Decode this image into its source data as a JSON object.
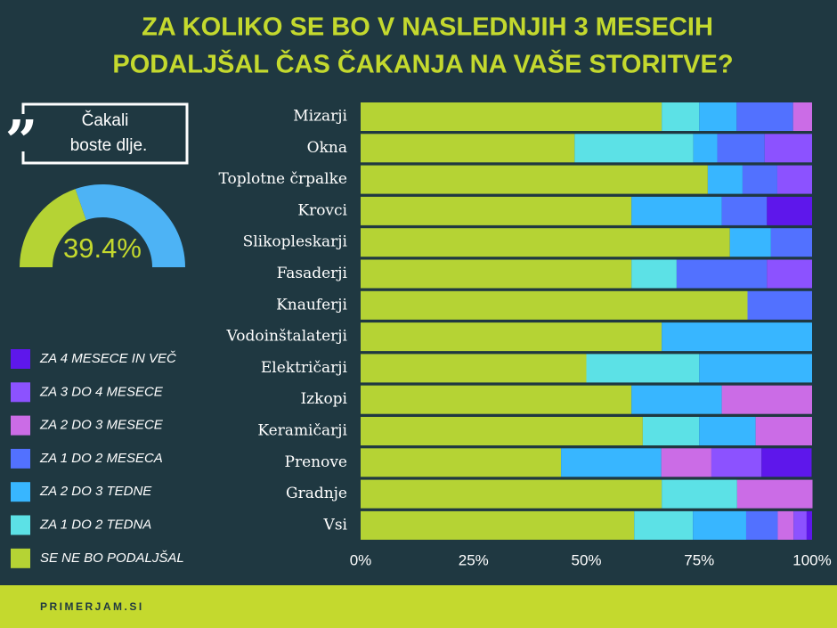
{
  "chart_data": [
    {
      "type": "bar",
      "orientation": "horizontal",
      "stacked": true,
      "title": [
        "ZA KOLIKO SE BO V NASLEDNJIH 3 MESECIH",
        "PODALJŠAL ČAS ČAKANJA NA VAŠE STORITVE?"
      ],
      "categories": [
        "Mizarji",
        "Okna",
        "Toplotne črpalke",
        "Krovci",
        "Slikopleskarji",
        "Fasaderji",
        "Knauferji",
        "Vodoinštalaterji",
        "Električarji",
        "Izkopi",
        "Keramičarji",
        "Prenove",
        "Gradnje",
        "Vsi"
      ],
      "series": [
        {
          "name": "SE NE BO PODALJŠAL",
          "color": "#b5d334",
          "values": [
            66.7,
            47.4,
            76.9,
            60,
            81.8,
            60,
            85.7,
            66.7,
            50,
            60,
            62.5,
            44.4,
            66.7,
            60.6
          ]
        },
        {
          "name": "ZA 1 DO 2 TEDNA",
          "color": "#5ce1e6",
          "values": [
            8.3,
            26.3,
            0,
            0,
            0,
            10,
            0,
            0,
            25,
            0,
            12.5,
            0,
            16.7,
            13
          ]
        },
        {
          "name": "ZA 2 DO 3 TEDNE",
          "color": "#38b6ff",
          "values": [
            8.3,
            5.3,
            7.7,
            20,
            9.1,
            0,
            0,
            33.3,
            25,
            20,
            12.5,
            22.2,
            0,
            11.8
          ]
        },
        {
          "name": "ZA 1 DO 2 MESECA",
          "color": "#5271ff",
          "values": [
            12.5,
            10.5,
            7.7,
            10,
            9.1,
            20,
            14.3,
            0,
            0,
            0,
            0,
            0,
            0,
            7
          ]
        },
        {
          "name": "ZA 2 DO 3 MESECE",
          "color": "#cb6ce6",
          "values": [
            4.2,
            0,
            0,
            0,
            0,
            0,
            0,
            0,
            0,
            20,
            12.5,
            11.1,
            16.7,
            3.5
          ]
        },
        {
          "name": "ZA 3 DO 4 MESECE",
          "color": "#8c52ff",
          "values": [
            0,
            10.5,
            7.7,
            0,
            0,
            10,
            0,
            0,
            0,
            0,
            0,
            11.1,
            0,
            2.9
          ]
        },
        {
          "name": "ZA 4 MESECE IN VEČ",
          "color": "#5e17eb",
          "values": [
            0,
            0,
            0,
            10,
            0,
            0,
            0,
            0,
            0,
            0,
            0,
            11.1,
            0,
            1.2
          ]
        }
      ],
      "xlim": [
        0,
        100
      ],
      "xticks": [
        {
          "value": 0,
          "label": "0%"
        },
        {
          "value": 25,
          "label": "25%"
        },
        {
          "value": 50,
          "label": "50%"
        },
        {
          "value": 75,
          "label": "75%"
        },
        {
          "value": 100,
          "label": "100%"
        }
      ]
    },
    {
      "type": "gauge",
      "quote_mark": "”",
      "quote": [
        "Čakali",
        "boste dlje."
      ],
      "value": 39.4,
      "value_label": "39.4%",
      "lim": [
        0,
        100
      ],
      "color": "#b5d334",
      "rest_color": "#4db3f5"
    }
  ],
  "footer": "PRIMERJAM.SI"
}
